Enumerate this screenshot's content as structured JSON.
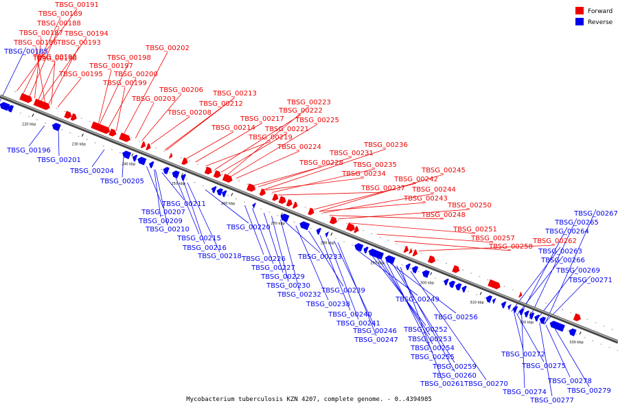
{
  "caption": "Mycobacterium tuberculosis KZN 4207, complete genome. - 0..4394985",
  "legend": [
    {
      "label": "Forward",
      "color": "#ee0000"
    },
    {
      "label": "Reverse",
      "color": "#0000ee"
    }
  ],
  "colors": {
    "forward": "#ee0000",
    "reverse": "#0000ee",
    "backbone": "#777777"
  },
  "ticks": [
    "220 kbp",
    "230 kbp",
    "240 kbp",
    "250 kbp",
    "260 kbp",
    "270 kbp",
    "280 kbp",
    "290 kbp",
    "300 kbp",
    "310 kbp",
    "320 kbp",
    "330 kbp"
  ],
  "forward_genes": [
    "TBSG_00191",
    "TBSG_00189",
    "TBSG_00188",
    "TBSG_00187",
    "TBSG_00194",
    "TBSG_00186",
    "TBSG_00193",
    "TBSG_00192",
    "TBSG_00190",
    "TBSG_00198",
    "TBSG_00197",
    "TBSG_00195",
    "TBSG_00200",
    "TBSG_00199",
    "TBSG_00202",
    "TBSG_00206",
    "TBSG_00203",
    "TBSG_00213",
    "TBSG_00212",
    "TBSG_00208",
    "TBSG_00223",
    "TBSG_00222",
    "TBSG_00225",
    "TBSG_00217",
    "TBSG_00214",
    "TBSG_00221",
    "TBSG_00219",
    "TBSG_00224",
    "TBSG_00236",
    "TBSG_00231",
    "TBSG_00228",
    "TBSG_00235",
    "TBSG_00234",
    "TBSG_00237",
    "TBSG_00245",
    "TBSG_00242",
    "TBSG_00244",
    "TBSG_00243",
    "TBSG_00250",
    "TBSG_00248",
    "TBSG_00251",
    "TBSG_00257",
    "TBSG_00258",
    "TBSG_00262"
  ],
  "reverse_genes": [
    "TBSG_00185",
    "TBSG_00196",
    "TBSG_00201",
    "TBSG_00204",
    "TBSG_00205",
    "TBSG_00207",
    "TBSG_00209",
    "TBSG_00211",
    "TBSG_00210",
    "TBSG_00215",
    "TBSG_00216",
    "TBSG_00220",
    "TBSG_00218",
    "TBSG_00226",
    "TBSG_00227",
    "TBSG_00229",
    "TBSG_00233",
    "TBSG_00230",
    "TBSG_00232",
    "TBSG_00239",
    "TBSG_00238",
    "TBSG_00240",
    "TBSG_00241",
    "TBSG_00246",
    "TBSG_00249",
    "TBSG_00247",
    "TBSG_00256",
    "TBSG_00252",
    "TBSG_00253",
    "TBSG_00254",
    "TBSG_00255",
    "TBSG_00259",
    "TBSG_00260",
    "TBSG_00261",
    "TBSG_00270",
    "TBSG_00267",
    "TBSG_00265",
    "TBSG_00264",
    "TBSG_00263",
    "TBSG_00266",
    "TBSG_00269",
    "TBSG_00271",
    "TBSG_00272",
    "TBSG_00275",
    "TBSG_00274",
    "TBSG_00278",
    "TBSG_00277",
    "TBSG_00279"
  ]
}
